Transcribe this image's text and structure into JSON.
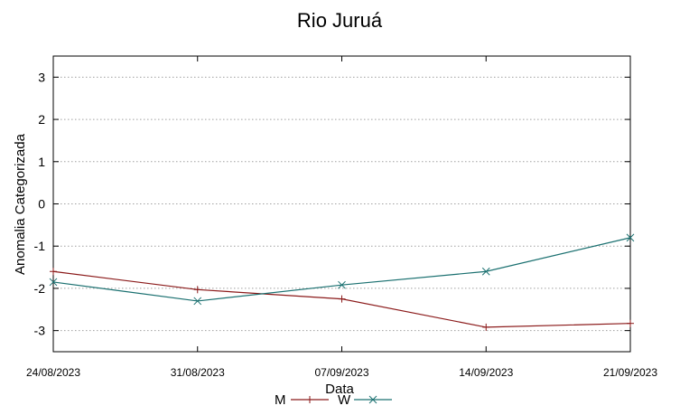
{
  "chart_data": {
    "type": "line",
    "title": "Rio Juruá",
    "xlabel": "Data",
    "ylabel": "Anomalia Categorizada",
    "categories": [
      "24/08/2023",
      "31/08/2023",
      "07/09/2023",
      "14/09/2023",
      "21/09/2023"
    ],
    "yticks": [
      "3",
      "2",
      "1",
      "0",
      "-1",
      "-2",
      "-3"
    ],
    "ylim": [
      -3.5,
      3.5
    ],
    "grid": "horizontal",
    "legend_position": "bottom-center",
    "series": [
      {
        "name": "M",
        "values": [
          -1.6,
          -2.03,
          -2.25,
          -2.92,
          -2.83
        ],
        "color": "#8b1a1a",
        "marker": "+"
      },
      {
        "name": "W",
        "values": [
          -1.85,
          -2.3,
          -1.92,
          -1.6,
          -0.8
        ],
        "color": "#1a7070",
        "marker": "x"
      }
    ]
  }
}
